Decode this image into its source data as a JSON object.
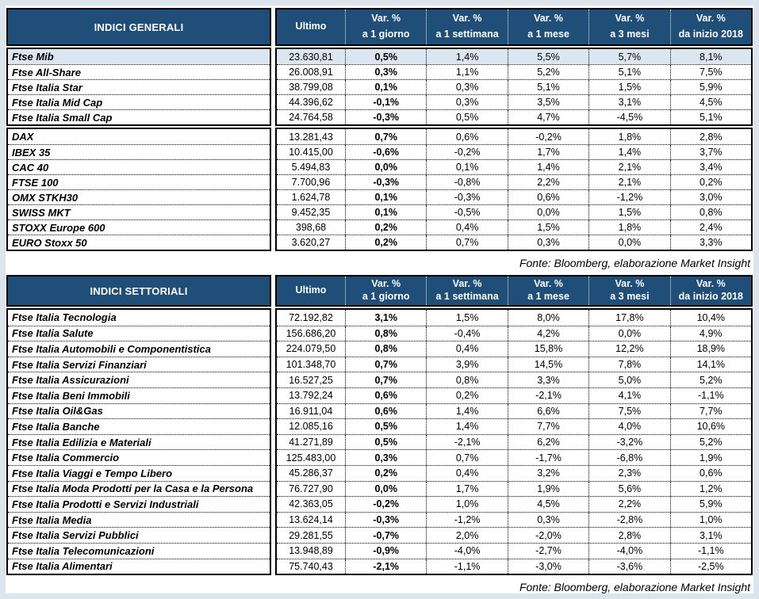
{
  "page": {
    "margin_background": "#dce4ee",
    "panel_background": "#ffffff"
  },
  "colors": {
    "header_bg": "#1f4e79",
    "header_text": "#ffffff",
    "highlight_row_bg": "#dce6f1",
    "border": "#000000"
  },
  "columns": [
    {
      "key": "ultimo",
      "line1": "Ultimo",
      "line2": ""
    },
    {
      "key": "var-1giorno",
      "line1": "Var. %",
      "line2": "a 1 giorno"
    },
    {
      "key": "var-1settimana",
      "line1": "Var. %",
      "line2": "a 1 settimana"
    },
    {
      "key": "var-1mese",
      "line1": "Var. %",
      "line2": "a 1 mese"
    },
    {
      "key": "var-3mesi",
      "line1": "Var. %",
      "line2": "a 3 mesi"
    },
    {
      "key": "var-inizio-2018",
      "line1": "Var. %",
      "line2": "da inizio 2018"
    }
  ],
  "tables": [
    {
      "title": "INDICI GENERALI",
      "source_note": "Fonte: Bloomberg, elaborazione Market Insight",
      "groups": [
        {
          "rows": [
            {
              "name": "Ftse Mib",
              "ultimo": "23.630,81",
              "changes": [
                "0,5%",
                "1,4%",
                "5,5%",
                "5,7%",
                "8,1%"
              ],
              "highlight": true
            },
            {
              "name": "Ftse All-Share",
              "ultimo": "26.008,91",
              "changes": [
                "0,3%",
                "1,1%",
                "5,2%",
                "5,1%",
                "7,5%"
              ]
            },
            {
              "name": "Ftse Italia Star",
              "ultimo": "38.799,08",
              "changes": [
                "0,1%",
                "0,3%",
                "5,1%",
                "1,5%",
                "5,9%"
              ]
            },
            {
              "name": "Ftse Italia Mid Cap",
              "ultimo": "44.396,62",
              "changes": [
                "-0,1%",
                "0,3%",
                "3,5%",
                "3,1%",
                "4,5%"
              ]
            },
            {
              "name": "Ftse Italia Small Cap",
              "ultimo": "24.764,58",
              "changes": [
                "-0,3%",
                "0,5%",
                "4,7%",
                "-4,5%",
                "5,1%"
              ]
            }
          ]
        },
        {
          "rows": [
            {
              "name": "DAX",
              "ultimo": "13.281,43",
              "changes": [
                "0,7%",
                "0,6%",
                "-0,2%",
                "1,8%",
                "2,8%"
              ]
            },
            {
              "name": "IBEX 35",
              "ultimo": "10.415,00",
              "changes": [
                "-0,6%",
                "-0,2%",
                "1,7%",
                "1,4%",
                "3,7%"
              ]
            },
            {
              "name": "CAC 40",
              "ultimo": "5.494,83",
              "changes": [
                "0,0%",
                "0,1%",
                "1,4%",
                "2,1%",
                "3,4%"
              ]
            },
            {
              "name": "FTSE 100",
              "ultimo": "7.700,96",
              "changes": [
                "-0,3%",
                "-0,8%",
                "2,2%",
                "2,1%",
                "0,2%"
              ]
            },
            {
              "name": "OMX STKH30",
              "ultimo": "1.624,78",
              "changes": [
                "0,1%",
                "-0,3%",
                "0,6%",
                "-1,2%",
                "3,0%"
              ]
            },
            {
              "name": "SWISS MKT",
              "ultimo": "9.452,35",
              "changes": [
                "0,1%",
                "-0,5%",
                "0,0%",
                "1,5%",
                "0,8%"
              ]
            },
            {
              "name": "STOXX Europe 600",
              "ultimo": "398,68",
              "changes": [
                "0,2%",
                "0,4%",
                "1,5%",
                "1,8%",
                "2,4%"
              ]
            },
            {
              "name": "EURO Stoxx 50",
              "ultimo": "3.620,27",
              "changes": [
                "0,2%",
                "0,7%",
                "0,3%",
                "0,0%",
                "3,3%"
              ]
            }
          ]
        }
      ]
    },
    {
      "title": "INDICI SETTORIALI",
      "source_note": "Fonte: Bloomberg, elaborazione Market Insight",
      "groups": [
        {
          "rows": [
            {
              "name": "Ftse Italia Tecnologia",
              "ultimo": "72.192,82",
              "changes": [
                "3,1%",
                "1,5%",
                "8,0%",
                "17,8%",
                "10,4%"
              ]
            },
            {
              "name": "Ftse Italia Salute",
              "ultimo": "156.686,20",
              "changes": [
                "0,8%",
                "-0,4%",
                "4,2%",
                "0,0%",
                "4,9%"
              ]
            },
            {
              "name": "Ftse Italia Automobili e Componentistica",
              "ultimo": "224.079,50",
              "changes": [
                "0,8%",
                "0,4%",
                "15,8%",
                "12,2%",
                "18,9%"
              ]
            },
            {
              "name": "Ftse Italia Servizi Finanziari",
              "ultimo": "101.348,70",
              "changes": [
                "0,7%",
                "3,9%",
                "14,5%",
                "7,8%",
                "14,1%"
              ]
            },
            {
              "name": "Ftse Italia Assicurazioni",
              "ultimo": "16.527,25",
              "changes": [
                "0,7%",
                "0,8%",
                "3,3%",
                "5,0%",
                "5,2%"
              ]
            },
            {
              "name": "Ftse Italia Beni Immobili",
              "ultimo": "13.792,24",
              "changes": [
                "0,6%",
                "0,2%",
                "-2,1%",
                "4,1%",
                "-1,1%"
              ]
            },
            {
              "name": "Ftse Italia Oil&Gas",
              "ultimo": "16.911,04",
              "changes": [
                "0,6%",
                "1,4%",
                "6,6%",
                "7,5%",
                "7,7%"
              ]
            },
            {
              "name": "Ftse Italia Banche",
              "ultimo": "12.085,16",
              "changes": [
                "0,5%",
                "1,4%",
                "7,7%",
                "4,0%",
                "10,6%"
              ]
            },
            {
              "name": "Ftse Italia Edilizia e Materiali",
              "ultimo": "41.271,89",
              "changes": [
                "0,5%",
                "-2,1%",
                "6,2%",
                "-3,2%",
                "5,2%"
              ]
            },
            {
              "name": "Ftse Italia Commercio",
              "ultimo": "125.483,00",
              "changes": [
                "0,3%",
                "0,7%",
                "-1,7%",
                "-6,8%",
                "1,9%"
              ]
            },
            {
              "name": "Ftse Italia Viaggi e Tempo Libero",
              "ultimo": "45.286,37",
              "changes": [
                "0,2%",
                "0,4%",
                "3,2%",
                "2,3%",
                "0,6%"
              ]
            },
            {
              "name": "Ftse Italia Moda Prodotti per la Casa e la Persona",
              "ultimo": "76.727,90",
              "changes": [
                "0,0%",
                "1,7%",
                "1,9%",
                "5,6%",
                "1,2%"
              ]
            },
            {
              "name": "Ftse Italia Prodotti e Servizi Industriali",
              "ultimo": "42.363,05",
              "changes": [
                "-0,2%",
                "1,0%",
                "4,5%",
                "2,2%",
                "5,9%"
              ]
            },
            {
              "name": "Ftse Italia Media",
              "ultimo": "13.624,14",
              "changes": [
                "-0,3%",
                "-1,2%",
                "0,3%",
                "-2,8%",
                "1,0%"
              ]
            },
            {
              "name": "Ftse Italia Servizi Pubblici",
              "ultimo": "29.281,55",
              "changes": [
                "-0,7%",
                "2,0%",
                "-2,0%",
                "2,8%",
                "3,1%"
              ]
            },
            {
              "name": "Ftse Italia Telecomunicazioni",
              "ultimo": "13.948,89",
              "changes": [
                "-0,9%",
                "-4,0%",
                "-2,7%",
                "-4,0%",
                "-1,1%"
              ]
            },
            {
              "name": "Ftse Italia Alimentari",
              "ultimo": "75.740,43",
              "changes": [
                "-2,1%",
                "-1,1%",
                "-3,0%",
                "-3,6%",
                "-2,5%"
              ]
            }
          ]
        }
      ]
    }
  ]
}
